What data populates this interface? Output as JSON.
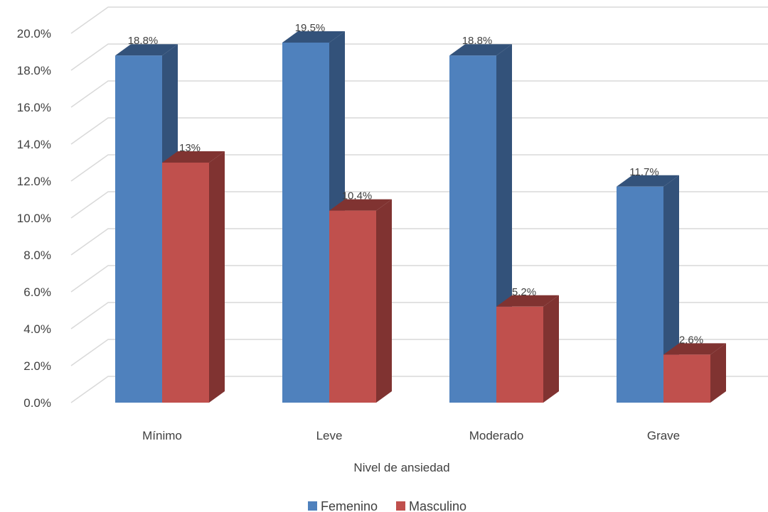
{
  "chart_data": {
    "type": "bar",
    "style": "3d-clustered-column",
    "categories": [
      "Mínimo",
      "Leve",
      "Moderado",
      "Grave"
    ],
    "series": [
      {
        "name": "Femenino",
        "values": [
          18.8,
          19.5,
          18.8,
          11.7
        ],
        "labels": [
          "18.8%",
          "19.5%",
          "18.8%",
          "11.7%"
        ],
        "color": "#4F81BD",
        "side_color": "#33527A"
      },
      {
        "name": "Masculino",
        "values": [
          13.0,
          10.4,
          5.2,
          2.6
        ],
        "labels": [
          "13%",
          "10.4%",
          "5.2%",
          "2.6%"
        ],
        "color": "#C0504D",
        "side_color": "#803331"
      }
    ],
    "y_ticks": [
      "0.0%",
      "2.0%",
      "4.0%",
      "6.0%",
      "8.0%",
      "10.0%",
      "12.0%",
      "14.0%",
      "16.0%",
      "18.0%",
      "20.0%"
    ],
    "ylim": [
      0,
      20
    ],
    "xlabel": "Nivel de ansiedad",
    "ylabel": "",
    "grid": true,
    "legend_position": "bottom",
    "grid_color": "#D9D9D9"
  }
}
